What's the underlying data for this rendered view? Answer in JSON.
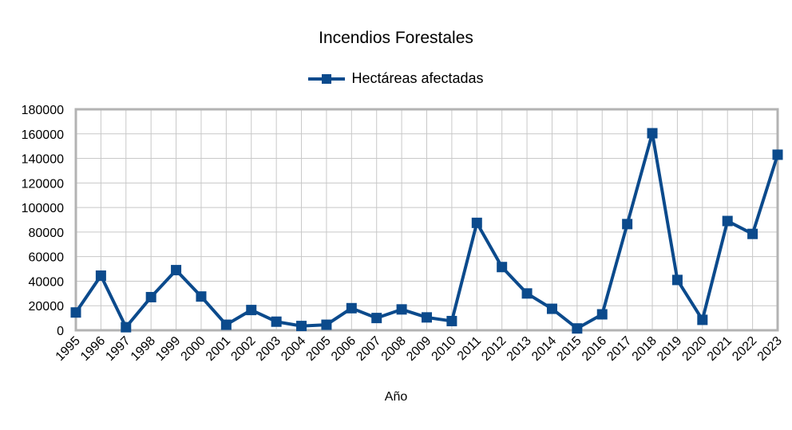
{
  "chart_data": {
    "type": "line",
    "title": "Incendios Forestales",
    "xlabel": "Año",
    "ylabel": "",
    "ylim": [
      0,
      180000
    ],
    "yticks": [
      0,
      20000,
      40000,
      60000,
      80000,
      100000,
      120000,
      140000,
      160000,
      180000
    ],
    "categories": [
      "1995",
      "1996",
      "1997",
      "1998",
      "1999",
      "2000",
      "2001",
      "2002",
      "2003",
      "2004",
      "2005",
      "2006",
      "2007",
      "2008",
      "2009",
      "2010",
      "2011",
      "2012",
      "2013",
      "2014",
      "2015",
      "2016",
      "2017",
      "2018",
      "2019",
      "2020",
      "2021",
      "2022",
      "2023"
    ],
    "series": [
      {
        "name": "Hectáreas afectadas",
        "color": "#0b4a8c",
        "marker": "square",
        "values": [
          14500,
          44500,
          2500,
          27000,
          49000,
          27500,
          4500,
          16500,
          7000,
          3500,
          4500,
          18000,
          10000,
          17000,
          10500,
          7500,
          87500,
          51500,
          30000,
          17500,
          1500,
          13000,
          86500,
          160500,
          41000,
          8500,
          89000,
          78500,
          143000
        ]
      }
    ],
    "grid": true,
    "legend_position": "top"
  }
}
